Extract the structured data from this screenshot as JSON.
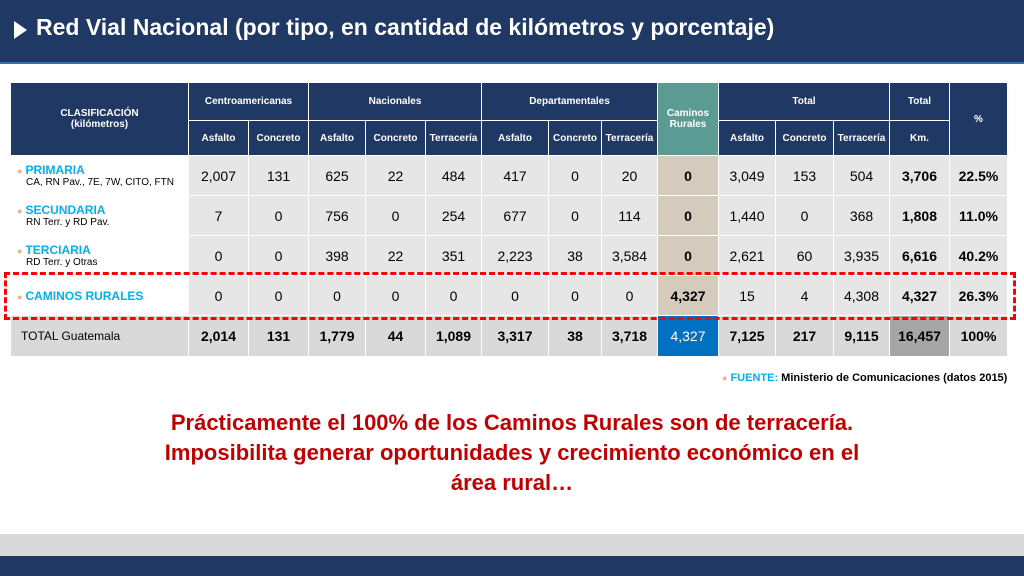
{
  "title": "Red Vial Nacional (por tipo, en cantidad de kilómetros y porcentaje)",
  "table": {
    "clasificacion": "CLASIFICACIÓN",
    "clasificacion_sub": "(kilómetros)",
    "groups": {
      "centroamericanas": "Centroamericanas",
      "nacionales": "Nacionales",
      "departamentales": "Departamentales",
      "caminos_rurales": "Caminos Rurales",
      "total": "Total",
      "total_km": "Total",
      "pct": "%"
    },
    "sub": {
      "asfalto": "Asfalto",
      "concreto": "Concreto",
      "terraceria": "Terracería",
      "km": "Km."
    },
    "rows": [
      {
        "name": "PRIMARIA",
        "sub": "CA, RN Pav., 7E, 7W, CITO, FTN",
        "values": [
          "2,007",
          "131",
          "625",
          "22",
          "484",
          "417",
          "0",
          "20",
          "0",
          "3,049",
          "153",
          "504",
          "3,706",
          "22.5%"
        ]
      },
      {
        "name": "SECUNDARIA",
        "sub": "RN Terr. y RD Pav.",
        "values": [
          "7",
          "0",
          "756",
          "0",
          "254",
          "677",
          "0",
          "114",
          "0",
          "1,440",
          "0",
          "368",
          "1,808",
          "11.0%"
        ]
      },
      {
        "name": "TERCIARIA",
        "sub": "RD Terr. y Otras",
        "values": [
          "0",
          "0",
          "398",
          "22",
          "351",
          "2,223",
          "38",
          "3,584",
          "0",
          "2,621",
          "60",
          "3,935",
          "6,616",
          "40.2%"
        ]
      },
      {
        "name": "CAMINOS RURALES",
        "sub": "",
        "values": [
          "0",
          "0",
          "0",
          "0",
          "0",
          "0",
          "0",
          "0",
          "4,327",
          "15",
          "4",
          "4,308",
          "4,327",
          "26.3%"
        ]
      }
    ],
    "total_row": {
      "name": "TOTAL Guatemala",
      "values": [
        "2,014",
        "131",
        "1,779",
        "44",
        "1,089",
        "3,317",
        "38",
        "3,718",
        "4,327",
        "7,125",
        "217",
        "9,115",
        "16,457",
        "100%"
      ]
    }
  },
  "fuente_label": "FUENTE:",
  "fuente_text": "Ministerio de Comunicaciones (datos 2015)",
  "message": "Prácticamente el 100% de los Caminos Rurales son de terracería. Imposibilita generar oportunidades y crecimiento económico en el área rural…",
  "colors": {
    "header": "#1f3864",
    "accent": "#00b0f0",
    "message": "#c00000",
    "highlight": "#ff0000"
  }
}
